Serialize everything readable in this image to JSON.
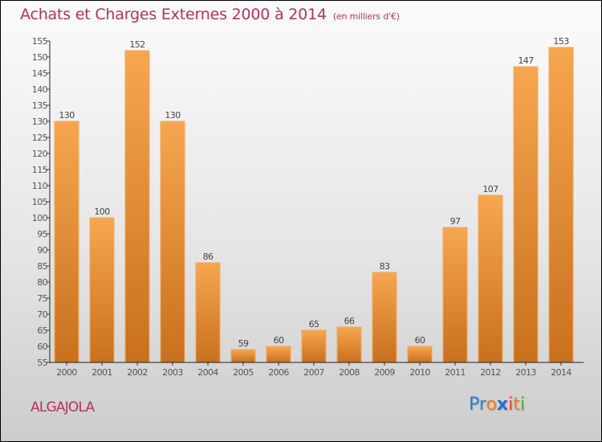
{
  "header": {
    "title": "Achats et Charges Externes 2000 à 2014",
    "unit_note": "(en milliers d'€)"
  },
  "footer": {
    "city": "ALGAJOLA",
    "logo_letters": [
      {
        "char": "P",
        "color": "#2a7fd4"
      },
      {
        "char": "r",
        "color": "#2a7fd4"
      },
      {
        "char": "o",
        "color": "#f07d1a"
      },
      {
        "char": "x",
        "color": "#2a6fd0"
      },
      {
        "char": "i",
        "color": "#e8452a"
      },
      {
        "char": "t",
        "color": "#f07d1a"
      },
      {
        "char": "i",
        "color": "#5aa82a"
      }
    ]
  },
  "colors": {
    "title": "#b5305e",
    "bar_top": "#f7a650",
    "bar_bottom": "#c8701e"
  },
  "chart_data": {
    "type": "bar",
    "title": "Achats et Charges Externes 2000 à 2014 (en milliers d'€)",
    "xlabel": "",
    "ylabel": "",
    "categories": [
      "2000",
      "2001",
      "2002",
      "2003",
      "2004",
      "2005",
      "2006",
      "2007",
      "2008",
      "2009",
      "2010",
      "2011",
      "2012",
      "2013",
      "2014"
    ],
    "values": [
      130,
      100,
      152,
      130,
      86,
      59,
      60,
      65,
      66,
      83,
      60,
      97,
      107,
      147,
      153
    ],
    "ylim": [
      55,
      155
    ],
    "yticks": [
      55,
      60,
      65,
      70,
      75,
      80,
      85,
      90,
      95,
      100,
      105,
      110,
      115,
      120,
      125,
      130,
      135,
      140,
      145,
      150,
      155
    ],
    "grid": false,
    "legend": "none"
  }
}
